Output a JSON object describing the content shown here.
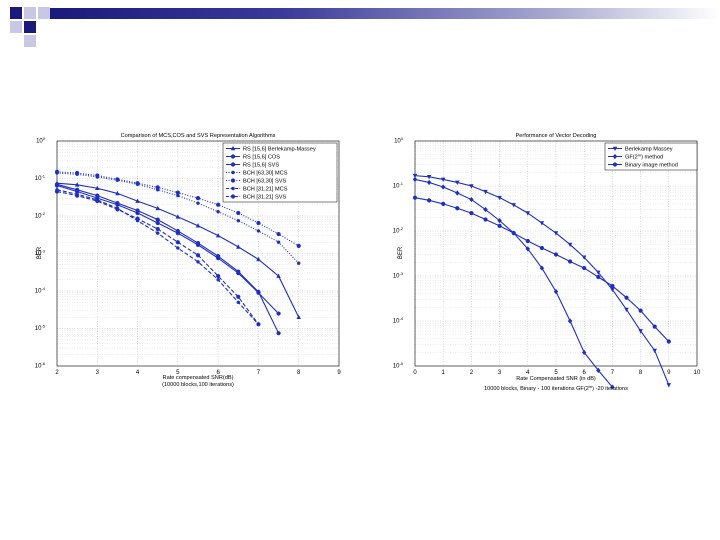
{
  "slide": {
    "colors": {
      "accent_dark": "#1a1a7a",
      "accent_mid": "#4a4aa8",
      "accent_light": "#b0b0d8",
      "series": "#1f2fbf"
    }
  },
  "chart_data": [
    {
      "type": "line",
      "title": "Comparison of MCS,COS and SVS Representation Algorithms",
      "xlabel": "Rate compensated SNR(dB)",
      "xlabel2": "(10000 blocks,100 iterations)",
      "ylabel": "BER",
      "xlim": [
        2,
        9
      ],
      "ylim_log10": [
        -6,
        0
      ],
      "xticks": [
        "2",
        "3",
        "4",
        "5",
        "6",
        "7",
        "8",
        "9"
      ],
      "yticks_exp": [
        "0",
        "-1",
        "-2",
        "-3",
        "-4",
        "-5",
        "-6"
      ],
      "ytick_base": "10",
      "grid": true,
      "legend_position": "top-right",
      "series": [
        {
          "name": "RS [15,6] Berlekamp-Massey",
          "marker": "triangle",
          "dash": "solid",
          "x": [
            2,
            2.5,
            3,
            3.5,
            4,
            4.5,
            5,
            5.5,
            6,
            6.5,
            7,
            7.5,
            8
          ],
          "y": [
            0.075,
            0.068,
            0.055,
            0.04,
            0.025,
            0.016,
            0.0095,
            0.0055,
            0.003,
            0.0015,
            0.0007,
            0.00025,
            2e-05
          ]
        },
        {
          "name": "RS [15,6] COS",
          "marker": "circle",
          "dash": "solid",
          "x": [
            2,
            2.5,
            3,
            3.5,
            4,
            4.5,
            5,
            5.5,
            6,
            6.5,
            7,
            7.5
          ],
          "y": [
            0.065,
            0.045,
            0.03,
            0.02,
            0.012,
            0.0065,
            0.0035,
            0.0017,
            0.00075,
            0.0003,
            9e-05,
            2.5e-05
          ]
        },
        {
          "name": "RS [15,6] SVS",
          "marker": "circle",
          "dash": "solid",
          "x": [
            2,
            2.5,
            3,
            3.5,
            4,
            4.5,
            5,
            5.5,
            6,
            6.5,
            7,
            7.5
          ],
          "y": [
            0.07,
            0.05,
            0.035,
            0.022,
            0.014,
            0.008,
            0.004,
            0.0019,
            0.00085,
            0.00033,
            9.5e-05,
            7.5e-06
          ]
        },
        {
          "name": "BCH [63,30] MCS",
          "marker": "dot",
          "dash": "dotted",
          "x": [
            2,
            2.5,
            3,
            3.5,
            4,
            4.5,
            5,
            5.5,
            6,
            6.5,
            7,
            7.5,
            8
          ],
          "y": [
            0.14,
            0.13,
            0.11,
            0.09,
            0.07,
            0.05,
            0.035,
            0.022,
            0.013,
            0.0075,
            0.004,
            0.002,
            0.00055
          ]
        },
        {
          "name": "BCH [63,30] SVS",
          "marker": "circle",
          "dash": "dotted",
          "x": [
            2,
            2.5,
            3,
            3.5,
            4,
            4.5,
            5,
            5.5,
            6,
            6.5,
            7,
            7.5,
            8
          ],
          "y": [
            0.15,
            0.14,
            0.12,
            0.095,
            0.075,
            0.058,
            0.042,
            0.03,
            0.02,
            0.012,
            0.0065,
            0.0033,
            0.0016
          ]
        },
        {
          "name": "BCH [31,21] MCS",
          "marker": "dot",
          "dash": "dashed",
          "x": [
            2,
            2.5,
            3,
            3.5,
            4,
            4.5,
            5,
            5.5,
            6,
            6.5,
            7
          ],
          "y": [
            0.05,
            0.038,
            0.027,
            0.016,
            0.0075,
            0.0035,
            0.0014,
            0.0006,
            0.0002,
            5e-05,
            1.3e-05
          ]
        },
        {
          "name": "BCH [31,21] SVS",
          "marker": "circle",
          "dash": "dashed",
          "x": [
            2,
            2.5,
            3,
            3.5,
            4,
            4.5,
            5,
            5.5,
            6,
            6.5,
            7
          ],
          "y": [
            0.045,
            0.035,
            0.025,
            0.015,
            0.0085,
            0.0045,
            0.002,
            0.0009,
            0.00025,
            7e-05,
            1.3e-05
          ]
        }
      ]
    },
    {
      "type": "line",
      "title": "Performance of Vector Decoding",
      "xlabel": "Rate Compensated SNR (in dB)",
      "xlabel2_parts": [
        "10000 blocks, Binary - 100 iterations GF(2",
        "m",
        ") -20 iterations"
      ],
      "ylabel": "BER",
      "xlim": [
        0,
        10
      ],
      "ylim_log10": [
        -5,
        0
      ],
      "xticks": [
        "0",
        "1",
        "2",
        "3",
        "4",
        "5",
        "6",
        "7",
        "8",
        "9",
        "10"
      ],
      "yticks_exp": [
        "0",
        "-1",
        "-2",
        "-3",
        "-4",
        "-5"
      ],
      "ytick_base": "10",
      "grid": true,
      "legend_position": "top-right",
      "legend_label_parts": [
        {
          "pre": "Berlekamp Massey",
          "sup": "",
          "post": ""
        },
        {
          "pre": "GF(2",
          "sup": "m",
          "post": ") method"
        },
        {
          "pre": "Binary image method",
          "sup": "",
          "post": ""
        }
      ],
      "series": [
        {
          "name": "Berlekamp Massey",
          "marker": "triangle-down",
          "x": [
            0,
            0.5,
            1,
            1.5,
            2,
            2.5,
            3,
            3.5,
            4,
            4.5,
            5,
            5.5,
            6,
            6.5,
            7,
            7.5,
            8,
            8.5,
            9
          ],
          "y": [
            0.17,
            0.16,
            0.14,
            0.12,
            0.1,
            0.075,
            0.055,
            0.038,
            0.025,
            0.015,
            0.009,
            0.005,
            0.0026,
            0.0012,
            0.0005,
            0.00018,
            6e-05,
            2.2e-05,
            3.8e-06
          ]
        },
        {
          "name": "GF(2m) method",
          "marker": "diamond",
          "x": [
            0,
            0.5,
            1,
            1.5,
            2,
            2.5,
            3,
            3.5,
            4,
            4.5,
            5,
            5.5,
            6,
            6.5,
            7
          ],
          "y": [
            0.14,
            0.12,
            0.095,
            0.07,
            0.05,
            0.03,
            0.017,
            0.009,
            0.004,
            0.0015,
            0.00045,
            0.0001,
            2e-05,
            8e-06,
            3.4e-06
          ]
        },
        {
          "name": "Binary image method",
          "marker": "circle",
          "x": [
            0,
            0.5,
            1,
            1.5,
            2,
            2.5,
            3,
            3.5,
            4,
            4.5,
            5,
            5.5,
            6,
            6.5,
            7,
            7.5,
            8,
            8.5,
            9
          ],
          "y": [
            0.055,
            0.048,
            0.04,
            0.032,
            0.025,
            0.018,
            0.013,
            0.009,
            0.006,
            0.0042,
            0.003,
            0.0021,
            0.0015,
            0.00095,
            0.0006,
            0.00033,
            0.00017,
            7.5e-05,
            3.5e-05
          ]
        }
      ]
    }
  ]
}
